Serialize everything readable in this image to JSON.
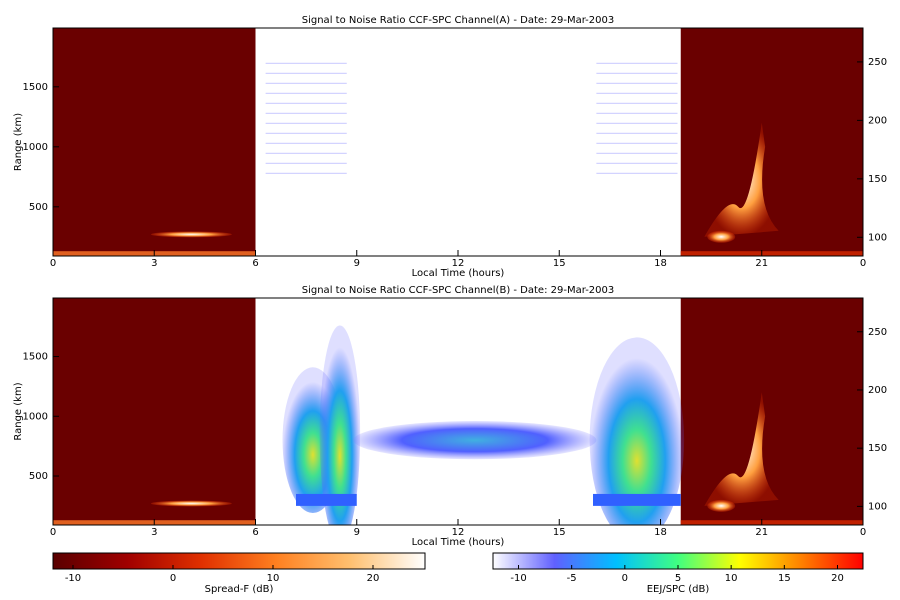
{
  "chart_data": [
    {
      "type": "heatmap",
      "title": "Signal to Noise Ratio CCF-SPC Channel(A) - Date: 29-Mar-2003",
      "xlabel": "Local Time (hours)",
      "ylabel": "Range (km)",
      "xlim": [
        0,
        24
      ],
      "xticks": [
        0,
        3,
        6,
        9,
        12,
        15,
        18,
        21,
        {
          "value": 24,
          "label": "0"
        }
      ],
      "ylim": [
        90,
        1990
      ],
      "yticks": [
        500,
        1000,
        1500
      ],
      "y2lim": [
        84,
        279
      ],
      "y2ticks": [
        100,
        150,
        200,
        250
      ]
    },
    {
      "type": "heatmap",
      "title": "Signal to Noise Ratio CCF-SPC Channel(B) - Date: 29-Mar-2003",
      "xlabel": "Local Time (hours)",
      "ylabel": "Range (km)",
      "xlim": [
        0,
        24
      ],
      "xticks": [
        0,
        3,
        6,
        9,
        12,
        15,
        18,
        21,
        {
          "value": 24,
          "label": "0"
        }
      ],
      "ylim": [
        90,
        1990
      ],
      "yticks": [
        500,
        1000,
        1500
      ],
      "y2lim": [
        84,
        279
      ],
      "y2ticks": [
        100,
        150,
        200,
        250
      ]
    },
    {
      "type": "colorbar",
      "xlabel": "Spread-F (dB)",
      "xlim": [
        -12,
        25.2
      ],
      "xticks": [
        -10,
        0,
        10,
        20
      ],
      "colors": [
        "#5a0000",
        "#a00000",
        "#e03000",
        "#ff8020",
        "#ffc070",
        "#ffffff"
      ]
    },
    {
      "type": "colorbar",
      "xlabel": "EEJ/SPC (dB)",
      "xlim": [
        -12.4,
        22.4
      ],
      "xticks": [
        -10,
        -5,
        0,
        5,
        10,
        15,
        20
      ],
      "colors": [
        "#ffffff",
        "#6060ff",
        "#00c0ff",
        "#40ff80",
        "#ffff00",
        "#ff8000",
        "#ff0000"
      ]
    }
  ]
}
